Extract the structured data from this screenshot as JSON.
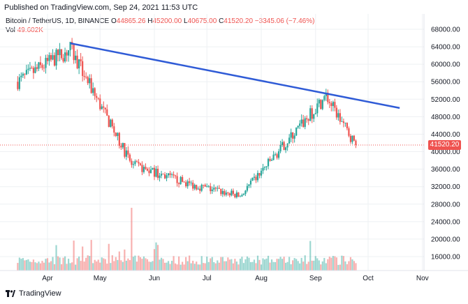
{
  "header": {
    "published": "Published on TradingView.com, Sep 24, 2021 11:53 UTC",
    "symbol": "Bitcoin / TetherUS, 1D, BINANCE",
    "open_label": "O",
    "open": "44865.26",
    "high_label": "H",
    "high": "45200.00",
    "low_label": "L",
    "low": "40675.00",
    "close_label": "C",
    "close": "41520.20",
    "change": "−3345.06 (−7.46%)",
    "vol_label": "Vol",
    "vol": "49.602K"
  },
  "last_price": "41520.20",
  "footer": {
    "brand": "TradingView"
  },
  "colors": {
    "up": "#26a69a",
    "down": "#ef5350",
    "trendline": "#2f5bd6",
    "grid": "#eef0f3"
  },
  "chart_data": {
    "type": "candlestick",
    "x_axis_labels": [
      "Apr",
      "May",
      "Jun",
      "Jul",
      "Aug",
      "Sep",
      "Oct",
      "Nov"
    ],
    "y_axis_labels": [
      "68000.00",
      "64000.00",
      "60000.00",
      "56000.00",
      "52000.00",
      "48000.00",
      "44000.00",
      "40000.00",
      "36000.00",
      "32000.00",
      "28000.00",
      "24000.00",
      "20000.00",
      "16000.00"
    ],
    "ylim": [
      13000,
      70000
    ],
    "key_points": [
      {
        "date": "2021-03-15",
        "close": 56000
      },
      {
        "date": "2021-04-14",
        "close": 63500
      },
      {
        "date": "2021-05-19",
        "close": 37000
      },
      {
        "date": "2021-06-22",
        "close": 32500
      },
      {
        "date": "2021-07-20",
        "close": 29800
      },
      {
        "date": "2021-09-07",
        "close": 52700
      },
      {
        "date": "2021-09-24",
        "close": 41520
      }
    ],
    "trendline": {
      "start": {
        "date": "2021-04-14",
        "price": 64800
      },
      "end": {
        "date": "2021-10-19",
        "price": 50000
      }
    },
    "last_price_line": 41520.2
  }
}
